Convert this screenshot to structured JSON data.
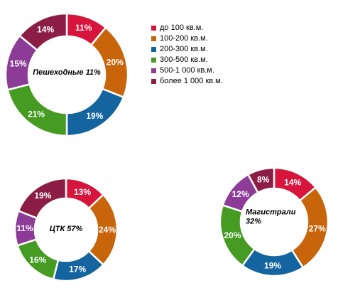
{
  "legend": {
    "items": [
      {
        "label": "до 100 кв.м.",
        "color": "#d7143c"
      },
      {
        "label": "100-200 кв.м.",
        "color": "#c8640a"
      },
      {
        "label": "200-300 кв.м.",
        "color": "#1464a0"
      },
      {
        "label": "300-500 кв.м.",
        "color": "#469b23"
      },
      {
        "label": "500-1 000 кв.м.",
        "color": "#8c3c96"
      },
      {
        "label": "более 1 000 кв.м.",
        "color": "#8c1e46"
      }
    ]
  },
  "chart_data": [
    {
      "type": "pie",
      "style": "donut",
      "title": "Пешеходные  11%",
      "categories": [
        "до 100 кв.м.",
        "100-200 кв.м.",
        "200-300 кв.м.",
        "300-500 кв.м.",
        "500-1 000 кв.м.",
        "более 1 000 кв.м."
      ],
      "values": [
        11,
        20,
        19,
        21,
        15,
        14
      ],
      "labels": [
        "11%",
        "20%",
        "19%",
        "21%",
        "15%",
        "14%"
      ]
    },
    {
      "type": "pie",
      "style": "donut",
      "title": "ЦТК 57%",
      "categories": [
        "до 100 кв.м.",
        "100-200 кв.м.",
        "200-300 кв.м.",
        "300-500 кв.м.",
        "500-1 000 кв.м.",
        "более 1 000 кв.м."
      ],
      "values": [
        13,
        24,
        17,
        16,
        11,
        19
      ],
      "labels": [
        "13%",
        "24%",
        "17%",
        "16%",
        "11%",
        "19%"
      ]
    },
    {
      "type": "pie",
      "style": "donut",
      "title": "Магистрали\n32%",
      "categories": [
        "до 100 кв.м.",
        "100-200 кв.м.",
        "200-300 кв.м.",
        "300-500 кв.м.",
        "500-1 000 кв.м.",
        "более 1 000 кв.м."
      ],
      "values": [
        14,
        27,
        19,
        20,
        12,
        8
      ],
      "labels": [
        "14%",
        "27%",
        "19%",
        "20%",
        "12%",
        "8%"
      ]
    }
  ]
}
